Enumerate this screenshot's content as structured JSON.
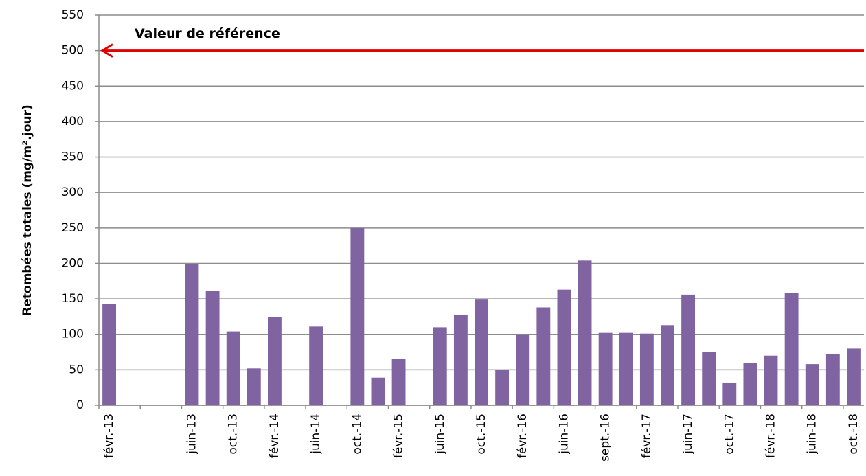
{
  "chart_data": {
    "type": "bar",
    "y_label": "Retombées totales (mg/m².jour)",
    "categories": [
      "févr.-13",
      null,
      null,
      null,
      "juin-13",
      null,
      "oct.-13",
      null,
      "févr.-14",
      null,
      "juin-14",
      null,
      "oct.-14",
      null,
      "févr.-15",
      null,
      "juin-15",
      null,
      "oct.-15",
      null,
      "févr.-16",
      null,
      "juin-16",
      null,
      "sept.-16",
      null,
      "févr.-17",
      null,
      "juin-17",
      null,
      "oct.-17",
      null,
      "févr.-18",
      null,
      "juin-18",
      null,
      "oct.-18"
    ],
    "values": [
      143,
      null,
      null,
      null,
      199,
      161,
      104,
      52,
      124,
      null,
      111,
      null,
      250,
      39,
      65,
      null,
      110,
      127,
      149,
      50,
      100,
      138,
      163,
      204,
      102,
      102,
      101,
      113,
      156,
      75,
      32,
      60,
      70,
      158,
      58,
      72,
      80
    ],
    "color": "#8064a2",
    "ylim": [
      0,
      550
    ],
    "yticks": [
      0,
      50,
      100,
      150,
      200,
      250,
      300,
      350,
      400,
      450,
      500,
      550
    ],
    "grid": true,
    "reference": {
      "value": 500,
      "label": "Valeur de référence",
      "color": "#e00000"
    }
  }
}
